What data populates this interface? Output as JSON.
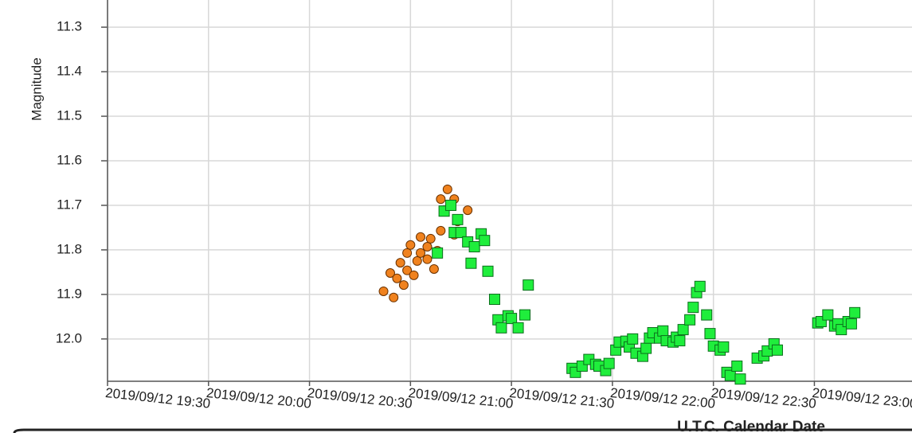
{
  "chart_data": {
    "type": "scatter",
    "y_label": "Magnitude",
    "x_label": "U.T.C. Calendar Date",
    "xlim": [
      "2019/09/12 19:30",
      "2019/09/12 23:29"
    ],
    "xticks": [
      "2019/09/12 19:30",
      "2019/09/12 20:00",
      "2019/09/12 20:30",
      "2019/09/12 21:00",
      "2019/09/12 21:30",
      "2019/09/12 22:00",
      "2019/09/12 22:30",
      "2019/09/12 23:00"
    ],
    "ylim": [
      12.095,
      11.239
    ],
    "yticks": [
      11.3,
      11.4,
      11.5,
      11.6,
      11.7,
      11.8,
      11.9,
      {
        "value": 12,
        "label": "12.0"
      }
    ],
    "grid": true,
    "series": [
      {
        "color": "#f0821e",
        "marker": "circle",
        "x": [
          "2019/09/12 20:52",
          "2019/09/12 20:55",
          "2019/09/12 20:54",
          "2019/09/12 20:56",
          "2019/09/12 20:57",
          "2019/09/12 20:58",
          "2019/09/12 20:59",
          "2019/09/12 20:59",
          "2019/09/12 21:00",
          "2019/09/12 21:01",
          "2019/09/12 21:02",
          "2019/09/12 21:03",
          "2019/09/12 21:03",
          "2019/09/12 21:05",
          "2019/09/12 21:05",
          "2019/09/12 21:06",
          "2019/09/12 21:07",
          "2019/09/12 21:08",
          "2019/09/12 21:09",
          "2019/09/12 21:09",
          "2019/09/12 21:10",
          "2019/09/12 21:11",
          "2019/09/12 21:13",
          "2019/09/12 21:13",
          "2019/09/12 21:14",
          "2019/09/12 21:17"
        ],
        "values": [
          11.893,
          11.907,
          11.852,
          11.864,
          11.829,
          11.879,
          11.846,
          11.807,
          11.789,
          11.857,
          11.825,
          11.807,
          11.771,
          11.793,
          11.821,
          11.775,
          11.843,
          11.802,
          11.757,
          11.686,
          11.711,
          11.664,
          11.766,
          11.686,
          11.736,
          11.711
        ]
      },
      {
        "color": "#1fee3c",
        "marker": "square",
        "x": [
          "2019/09/12 21:08",
          "2019/09/12 21:10",
          "2019/09/12 21:12",
          "2019/09/12 21:14",
          "2019/09/12 21:13",
          "2019/09/12 21:15",
          "2019/09/12 21:17",
          "2019/09/12 21:18",
          "2019/09/12 21:19",
          "2019/09/12 21:21",
          "2019/09/12 21:22",
          "2019/09/12 21:23",
          "2019/09/12 21:25",
          "2019/09/12 21:26",
          "2019/09/12 21:27",
          "2019/09/12 21:29",
          "2019/09/12 21:30",
          "2019/09/12 21:32",
          "2019/09/12 21:34",
          "2019/09/12 21:35",
          "2019/09/12 21:48",
          "2019/09/12 21:49",
          "2019/09/12 21:51",
          "2019/09/12 21:53",
          "2019/09/12 21:55",
          "2019/09/12 21:56",
          "2019/09/12 21:58",
          "2019/09/12 21:59",
          "2019/09/12 22:01",
          "2019/09/12 22:02",
          "2019/09/12 22:04",
          "2019/09/12 22:05",
          "2019/09/12 22:06",
          "2019/09/12 22:07",
          "2019/09/12 22:09",
          "2019/09/12 22:10",
          "2019/09/12 22:11",
          "2019/09/12 22:12",
          "2019/09/12 22:14",
          "2019/09/12 22:15",
          "2019/09/12 22:16",
          "2019/09/12 22:18",
          "2019/09/12 22:19",
          "2019/09/12 22:20",
          "2019/09/12 22:21",
          "2019/09/12 22:23",
          "2019/09/12 22:24",
          "2019/09/12 22:25",
          "2019/09/12 22:26",
          "2019/09/12 22:28",
          "2019/09/12 22:29",
          "2019/09/12 22:30",
          "2019/09/12 22:32",
          "2019/09/12 22:33",
          "2019/09/12 22:34",
          "2019/09/12 22:35",
          "2019/09/12 22:37",
          "2019/09/12 22:38",
          "2019/09/12 22:43",
          "2019/09/12 22:45",
          "2019/09/12 22:46",
          "2019/09/12 22:48",
          "2019/09/12 22:49",
          "2019/09/12 23:01",
          "2019/09/12 23:02",
          "2019/09/12 23:04",
          "2019/09/12 23:06",
          "2019/09/12 23:07",
          "2019/09/12 23:08",
          "2019/09/12 23:10",
          "2019/09/12 23:11",
          "2019/09/12 23:12"
        ],
        "values": [
          11.807,
          11.713,
          11.7,
          11.732,
          11.761,
          11.761,
          11.782,
          11.83,
          11.793,
          11.764,
          11.779,
          11.848,
          11.911,
          11.957,
          11.975,
          11.948,
          11.954,
          11.975,
          11.946,
          11.879,
          12.066,
          12.075,
          12.061,
          12.046,
          12.057,
          12.061,
          12.071,
          12.055,
          12.025,
          12.007,
          12.005,
          12.018,
          12.0,
          12.032,
          12.039,
          12.021,
          11.998,
          11.986,
          11.998,
          11.982,
          12.004,
          12.007,
          11.996,
          12.004,
          11.979,
          11.957,
          11.929,
          11.896,
          11.882,
          11.946,
          11.988,
          12.016,
          12.025,
          12.018,
          12.075,
          12.082,
          12.061,
          12.09,
          12.043,
          12.038,
          12.027,
          12.011,
          12.025,
          11.964,
          11.961,
          11.946,
          11.971,
          11.966,
          11.979,
          11.961,
          11.966,
          11.941
        ]
      }
    ]
  }
}
